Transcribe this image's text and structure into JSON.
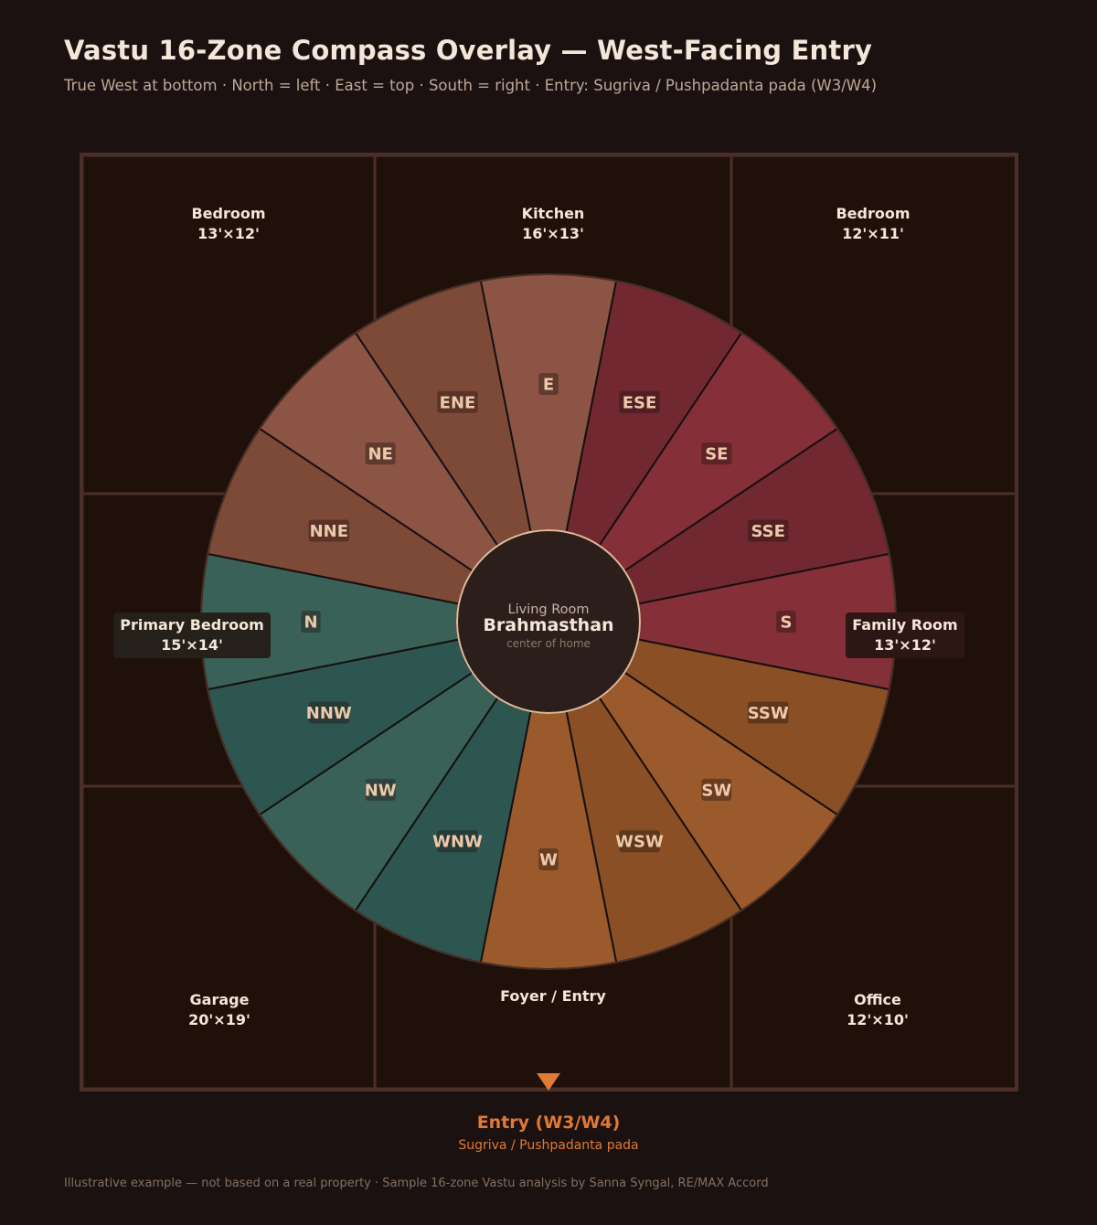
{
  "title": "Vastu 16-Zone Compass Overlay — West-Facing Entry",
  "subtitle": "True West at bottom · North = left · East = top · South = right · Entry: Sugriva / Pushpadanta pada (W3/W4)",
  "colors": {
    "background": "#1b1110",
    "room_fill": "#1f110a",
    "wall": "#4a3028",
    "water_light": "#3a6157",
    "water_dark": "#2e5650",
    "earth_light": "#8c5444",
    "earth_dark": "#7e4a38",
    "fire_light": "#852f38",
    "fire_dark": "#722830",
    "air_light": "#9b5a2c",
    "air_dark": "#8a4f25",
    "accent": "#e07a35"
  },
  "rooms": [
    {
      "id": "bedroom-ne",
      "name": "Bedroom",
      "size": "13'×12'"
    },
    {
      "id": "kitchen",
      "name": "Kitchen",
      "size": "16'×13'"
    },
    {
      "id": "bedroom-se",
      "name": "Bedroom",
      "size": "12'×11'"
    },
    {
      "id": "primary-bedroom",
      "name": "Primary Bedroom",
      "size": "15'×14'"
    },
    {
      "id": "family-room",
      "name": "Family Room",
      "size": "13'×12'"
    },
    {
      "id": "garage",
      "name": "Garage",
      "size": "20'×19'"
    },
    {
      "id": "foyer",
      "name": "Foyer / Entry",
      "size": ""
    },
    {
      "id": "office",
      "name": "Office",
      "size": "12'×10'"
    }
  ],
  "zones": [
    {
      "label": "E",
      "tone": "earth_light"
    },
    {
      "label": "ESE",
      "tone": "fire_dark"
    },
    {
      "label": "SE",
      "tone": "fire_light"
    },
    {
      "label": "SSE",
      "tone": "fire_dark"
    },
    {
      "label": "S",
      "tone": "fire_light"
    },
    {
      "label": "SSW",
      "tone": "air_dark"
    },
    {
      "label": "SW",
      "tone": "air_light"
    },
    {
      "label": "WSW",
      "tone": "air_dark"
    },
    {
      "label": "W",
      "tone": "air_light"
    },
    {
      "label": "WNW",
      "tone": "water_dark"
    },
    {
      "label": "NW",
      "tone": "water_light"
    },
    {
      "label": "NNW",
      "tone": "water_dark"
    },
    {
      "label": "N",
      "tone": "water_light"
    },
    {
      "label": "NNE",
      "tone": "earth_dark"
    },
    {
      "label": "NE",
      "tone": "earth_light"
    },
    {
      "label": "ENE",
      "tone": "earth_dark"
    }
  ],
  "center": {
    "room": "Living Room",
    "name": "Brahmasthan",
    "note": "center of home"
  },
  "entry": {
    "label": "Entry (W3/W4)",
    "pada": "Sugriva / Pushpadanta pada"
  },
  "footer": "Illustrative example — not based on a real property · Sample 16-zone Vastu analysis by Sanna Syngal, RE/MAX Accord"
}
